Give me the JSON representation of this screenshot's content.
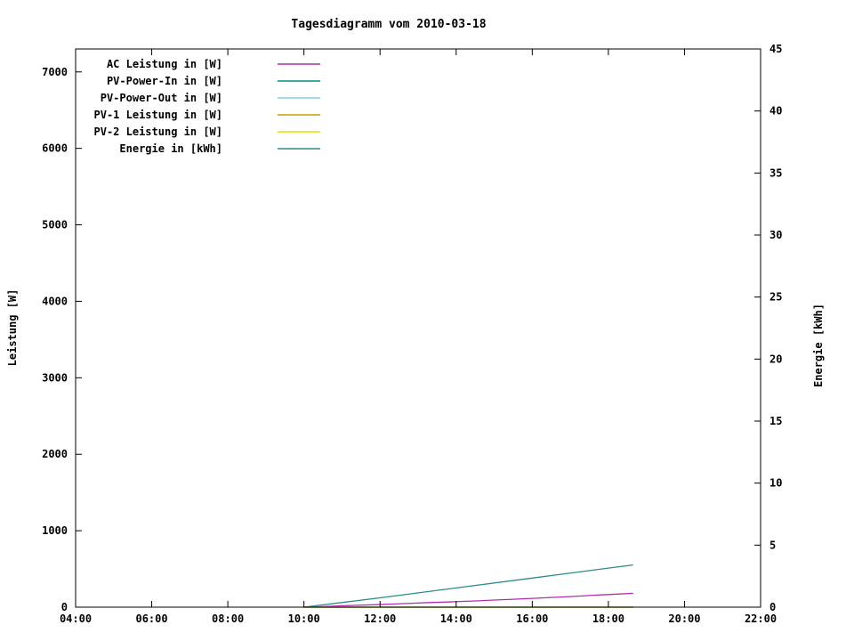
{
  "chart_data": {
    "type": "line",
    "title": "Tagesdiagramm vom 2010-03-18",
    "xlabel": "",
    "ylabel_left": "Leistung [W]",
    "ylabel_right": "Energie [kWh]",
    "x_range": [
      4,
      22
    ],
    "ylim_left": [
      0,
      7300
    ],
    "ylim_right": [
      0,
      45
    ],
    "grid": false,
    "legend_position": "top-left",
    "x_ticks": [
      {
        "hour": 4,
        "label": "04:00"
      },
      {
        "hour": 6,
        "label": "06:00"
      },
      {
        "hour": 8,
        "label": "08:00"
      },
      {
        "hour": 10,
        "label": "10:00"
      },
      {
        "hour": 12,
        "label": "12:00"
      },
      {
        "hour": 14,
        "label": "14:00"
      },
      {
        "hour": 16,
        "label": "16:00"
      },
      {
        "hour": 18,
        "label": "18:00"
      },
      {
        "hour": 20,
        "label": "20:00"
      },
      {
        "hour": 22,
        "label": "22:00"
      }
    ],
    "y_left_ticks": [
      0,
      1000,
      2000,
      3000,
      4000,
      5000,
      6000,
      7000
    ],
    "y_right_ticks": [
      0,
      5,
      10,
      15,
      20,
      25,
      30,
      35,
      40,
      45
    ],
    "series": [
      {
        "name": "AC Leistung in [W]",
        "color": "#b02fb0",
        "axis": "left",
        "points": [
          [
            10.0,
            0
          ],
          [
            10.4,
            6
          ],
          [
            10.9,
            16
          ],
          [
            11.4,
            25
          ],
          [
            11.9,
            33
          ],
          [
            12.4,
            42
          ],
          [
            12.9,
            52
          ],
          [
            13.3,
            60
          ],
          [
            13.7,
            66
          ],
          [
            14.1,
            74
          ],
          [
            14.5,
            82
          ],
          [
            15.0,
            93
          ],
          [
            15.5,
            104
          ],
          [
            16.0,
            115
          ],
          [
            16.5,
            127
          ],
          [
            17.0,
            139
          ],
          [
            17.5,
            152
          ],
          [
            18.0,
            165
          ],
          [
            18.3,
            172
          ],
          [
            18.65,
            182
          ]
        ]
      },
      {
        "name": "PV-Power-In in [W]",
        "color": "#008b8b",
        "axis": "left",
        "points": [
          [
            10.0,
            0
          ],
          [
            18.65,
            0
          ]
        ]
      },
      {
        "name": "PV-Power-Out in [W]",
        "color": "#86cde4",
        "axis": "left",
        "points": [
          [
            10.0,
            0
          ],
          [
            18.65,
            0
          ]
        ]
      },
      {
        "name": "PV-1 Leistung in [W]",
        "color": "#cc9a00",
        "axis": "left",
        "points": [
          [
            10.0,
            0
          ],
          [
            18.65,
            0
          ]
        ]
      },
      {
        "name": "PV-2 Leistung in [W]",
        "color": "#e3e300",
        "axis": "left",
        "points": [
          [
            10.0,
            0
          ],
          [
            18.65,
            0
          ]
        ]
      },
      {
        "name": "Energie in [kWh]",
        "color": "#2e8b8b",
        "axis": "right",
        "points": [
          [
            10.0,
            0.0
          ],
          [
            12.0,
            0.75
          ],
          [
            14.0,
            1.55
          ],
          [
            16.0,
            2.35
          ],
          [
            18.0,
            3.15
          ],
          [
            18.65,
            3.4
          ]
        ]
      }
    ]
  }
}
